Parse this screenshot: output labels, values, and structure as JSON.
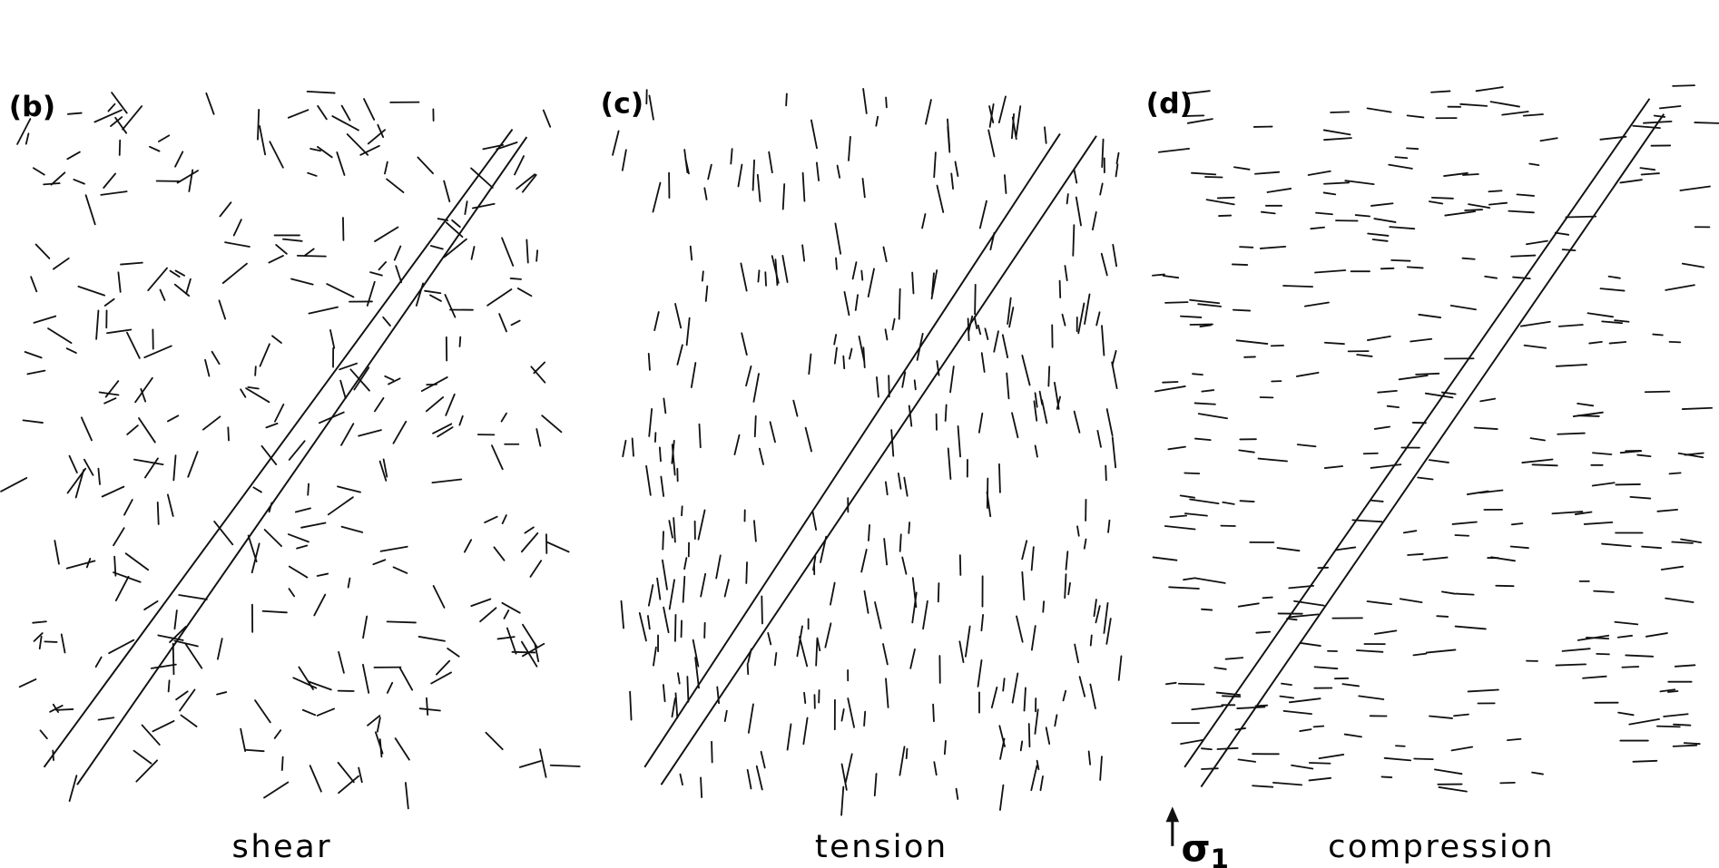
{
  "panels": [
    {
      "label": "(b)",
      "caption": "shear"
    },
    {
      "label": "(c)",
      "caption": "tension"
    },
    {
      "label": "(d)",
      "caption": "compression"
    }
  ],
  "stress_label": {
    "symbol": "σ",
    "subscript": "1"
  }
}
